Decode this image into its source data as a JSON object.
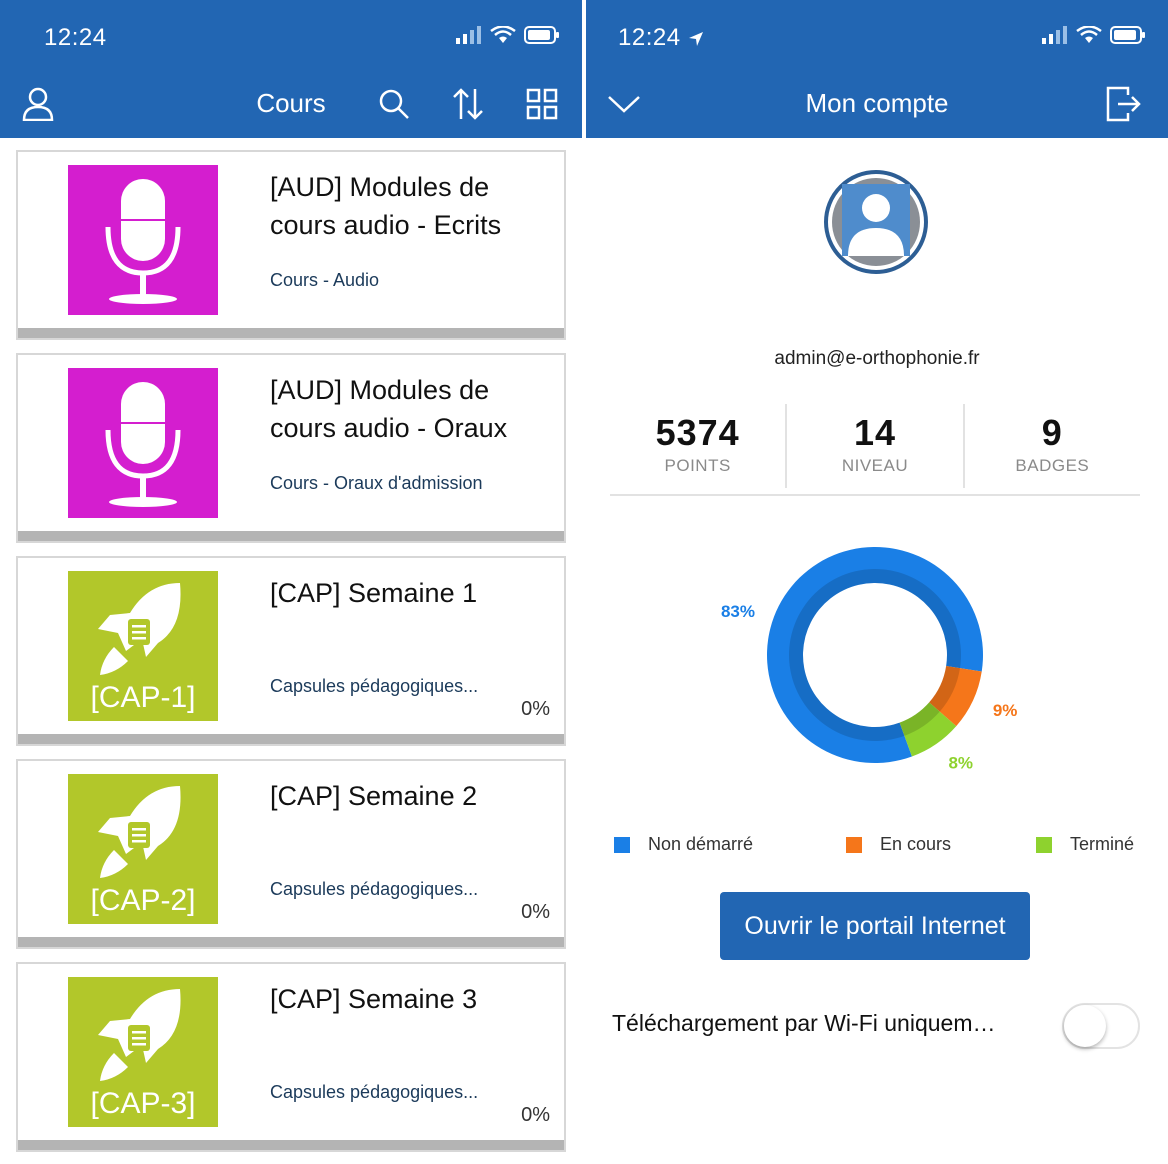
{
  "left": {
    "status": {
      "time": "12:24"
    },
    "nav": {
      "title": "Cours"
    },
    "courses": [
      {
        "title": "[AUD] Modules de cours audio - Ecrits",
        "subtitle": "Cours - Audio",
        "thumb": "microphone-icon",
        "thumb_color": "#d41ecf"
      },
      {
        "title": "[AUD] Modules de cours audio - Oraux",
        "subtitle": "Cours - Oraux d'admission",
        "thumb": "microphone-icon",
        "thumb_color": "#d41ecf"
      },
      {
        "title": "[CAP] Semaine 1",
        "subtitle": "Capsules pédagogiques...",
        "code": "[CAP-1]",
        "progress": "0%",
        "thumb": "rocket-icon",
        "thumb_color": "#b2c72a"
      },
      {
        "title": "[CAP] Semaine 2",
        "subtitle": "Capsules pédagogiques...",
        "code": "[CAP-2]",
        "progress": "0%",
        "thumb": "rocket-icon",
        "thumb_color": "#b2c72a"
      },
      {
        "title": "[CAP] Semaine 3",
        "subtitle": "Capsules pédagogiques...",
        "code": "[CAP-3]",
        "progress": "0%",
        "thumb": "rocket-icon",
        "thumb_color": "#b2c72a"
      }
    ]
  },
  "right": {
    "status": {
      "time": "12:24"
    },
    "nav": {
      "title": "Mon compte"
    },
    "email": "admin@e-orthophonie.fr",
    "stats": [
      {
        "value": "5374",
        "label": "POINTS"
      },
      {
        "value": "14",
        "label": "NIVEAU"
      },
      {
        "value": "9",
        "label": "BADGES"
      }
    ],
    "chart_data": {
      "type": "pie",
      "slices": [
        {
          "name": "Non démarré",
          "value": 83,
          "label": "83%",
          "color": "#1a7fe6"
        },
        {
          "name": "En cours",
          "value": 9,
          "label": "9%",
          "color": "#f5761a"
        },
        {
          "name": "Terminé",
          "value": 8,
          "label": "8%",
          "color": "#8ed22e"
        }
      ]
    },
    "portal_button": "Ouvrir le portail Internet",
    "wifi_only_label": "Téléchargement par Wi-Fi uniquem…",
    "wifi_only_enabled": false
  },
  "colors": {
    "bar": "#2266b3",
    "accent": "#2266b3"
  }
}
